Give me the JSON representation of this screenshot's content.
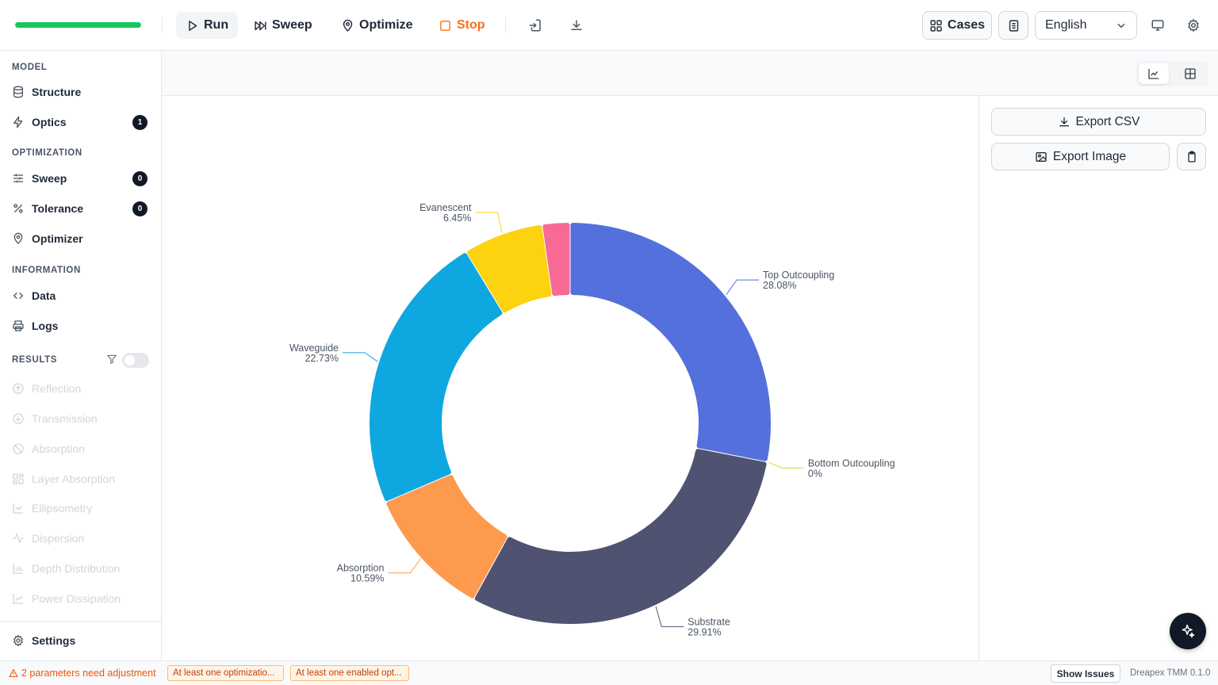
{
  "toolbar": {
    "progress_percent": 100,
    "run_label": "Run",
    "sweep_label": "Sweep",
    "optimize_label": "Optimize",
    "stop_label": "Stop",
    "cases_label": "Cases",
    "language": "English"
  },
  "sidebar": {
    "model_heading": "MODEL",
    "structure_label": "Structure",
    "optics_label": "Optics",
    "optics_badge": "1",
    "optimization_heading": "OPTIMIZATION",
    "sweep_label": "Sweep",
    "sweep_badge": "0",
    "tolerance_label": "Tolerance",
    "tolerance_badge": "0",
    "optimizer_label": "Optimizer",
    "information_heading": "INFORMATION",
    "data_label": "Data",
    "logs_label": "Logs",
    "results_heading": "RESULTS",
    "results": [
      "Reflection",
      "Transmission",
      "Absorption",
      "Layer Absorption",
      "Ellipsometry",
      "Dispersion",
      "Depth Distribution",
      "Power Dissipation"
    ],
    "settings_label": "Settings"
  },
  "panel": {
    "export_csv_label": "Export CSV",
    "export_image_label": "Export Image"
  },
  "status": {
    "warning": "2 parameters need adjustment",
    "chip1": "At least one optimizatio...",
    "chip2": "At least one enabled opt...",
    "show_issues": "Show Issues",
    "version": "Dreapex TMM 0.1.0"
  },
  "chart_data": {
    "type": "pie",
    "donut": true,
    "slices": [
      {
        "name": "Top Outcoupling",
        "value": 28.08,
        "label": "28.08%",
        "color": "#5470dc"
      },
      {
        "name": "Bottom Outcoupling",
        "value": 0,
        "label": "0%",
        "color": "#d4d92b"
      },
      {
        "name": "Substrate",
        "value": 29.91,
        "label": "29.91%",
        "color": "#4f5270"
      },
      {
        "name": "Absorption",
        "value": 10.59,
        "label": "10.59%",
        "color": "#fd9a4d"
      },
      {
        "name": "Waveguide",
        "value": 22.73,
        "label": "22.73%",
        "color": "#0fa7df"
      },
      {
        "name": "Evanescent",
        "value": 6.45,
        "label": "6.45%",
        "color": "#fdd20f"
      },
      {
        "name": "",
        "value": 2.24,
        "label": "",
        "color": "#f76a95"
      }
    ]
  }
}
